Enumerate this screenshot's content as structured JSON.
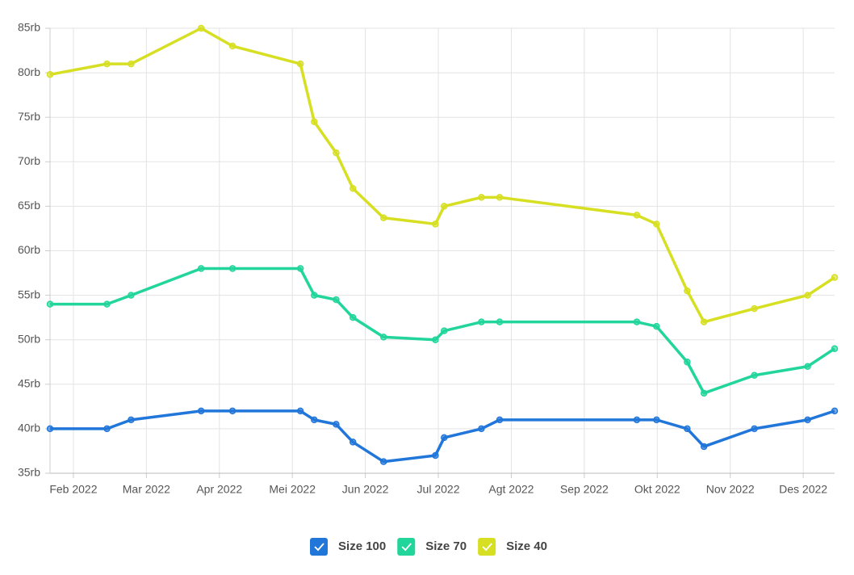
{
  "chart_data": {
    "type": "line",
    "x": [
      1.68,
      2.46,
      2.79,
      3.75,
      4.18,
      5.11,
      5.3,
      5.6,
      5.83,
      6.25,
      6.96,
      7.08,
      7.59,
      7.84,
      9.72,
      9.99,
      10.41,
      10.64,
      11.33,
      12.06,
      12.43
    ],
    "series": [
      {
        "name": "Size 100",
        "color": "#2176d9",
        "values": [
          40,
          40,
          41,
          42,
          42,
          42,
          41,
          40.5,
          38.5,
          36.3,
          37,
          39,
          40,
          41,
          41,
          41,
          40,
          38,
          40,
          41,
          42
        ]
      },
      {
        "name": "Size 70",
        "color": "#21d59b",
        "values": [
          54,
          54,
          55,
          58,
          58,
          58,
          55,
          54.5,
          52.5,
          50.3,
          50,
          51,
          52,
          52,
          52,
          51.5,
          47.5,
          44,
          46,
          47,
          49
        ]
      },
      {
        "name": "Size 40",
        "color": "#d7df23",
        "values": [
          79.8,
          81,
          81,
          85,
          83,
          81,
          74.5,
          71,
          67,
          63.7,
          63,
          65,
          66,
          66,
          64,
          63,
          55.5,
          52,
          53.5,
          55,
          57
        ]
      }
    ],
    "xlim": [
      1.68,
      12.43
    ],
    "xticks": [
      {
        "value": 2,
        "label": "Feb 2022"
      },
      {
        "value": 3,
        "label": "Mar 2022"
      },
      {
        "value": 4,
        "label": "Apr 2022"
      },
      {
        "value": 5,
        "label": "Mei 2022"
      },
      {
        "value": 6,
        "label": "Jun 2022"
      },
      {
        "value": 7,
        "label": "Jul 2022"
      },
      {
        "value": 8,
        "label": "Agt 2022"
      },
      {
        "value": 9,
        "label": "Sep 2022"
      },
      {
        "value": 10,
        "label": "Okt 2022"
      },
      {
        "value": 11,
        "label": "Nov 2022"
      },
      {
        "value": 12,
        "label": "Des 2022"
      }
    ],
    "ylim": [
      35,
      85
    ],
    "yticks": [
      {
        "value": 35,
        "label": "35rb"
      },
      {
        "value": 40,
        "label": "40rb"
      },
      {
        "value": 45,
        "label": "45rb"
      },
      {
        "value": 50,
        "label": "50rb"
      },
      {
        "value": 55,
        "label": "55rb"
      },
      {
        "value": 60,
        "label": "60rb"
      },
      {
        "value": 65,
        "label": "65rb"
      },
      {
        "value": 70,
        "label": "70rb"
      },
      {
        "value": 75,
        "label": "75rb"
      },
      {
        "value": 80,
        "label": "80rb"
      },
      {
        "value": 85,
        "label": "85rb"
      }
    ],
    "grid": true,
    "legend": "bottom"
  }
}
